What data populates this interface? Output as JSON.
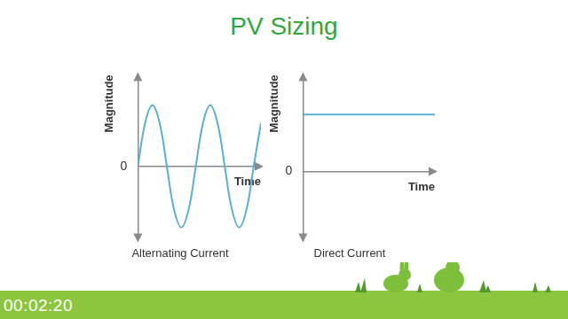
{
  "slide": {
    "title": "PV Sizing",
    "timestamp": "00:02:20"
  },
  "chart_data": [
    {
      "type": "line",
      "title": "Alternating Current",
      "x_label": "Time",
      "y_label": "Magnitude",
      "x": [
        0,
        0.5,
        1,
        1.5,
        2,
        2.5,
        3,
        3.5,
        4,
        4.5,
        5,
        5.5,
        6,
        6.5,
        7,
        7.5,
        8,
        8.5
      ],
      "values": [
        0,
        0.71,
        1,
        0.71,
        0,
        -0.71,
        -1,
        -0.71,
        0,
        0.71,
        1,
        0.71,
        0,
        -0.71,
        -1,
        -0.71,
        0,
        0.71
      ],
      "color": "#5aafd8",
      "xlim": [
        0,
        8.5
      ],
      "ylim": [
        -1.2,
        1.5
      ],
      "yticks": [
        0
      ],
      "tick_labels": "y",
      "grid": false
    },
    {
      "type": "line",
      "title": "Direct Current",
      "x_label": "Time",
      "y_label": "Magnitude",
      "x": [
        0,
        9
      ],
      "values": [
        1,
        1
      ],
      "color": "#5aafd8",
      "xlim": [
        0,
        9
      ],
      "ylim": [
        -1.2,
        1.7
      ],
      "yticks": [
        0
      ],
      "tick_labels": "y",
      "grid": false
    }
  ]
}
